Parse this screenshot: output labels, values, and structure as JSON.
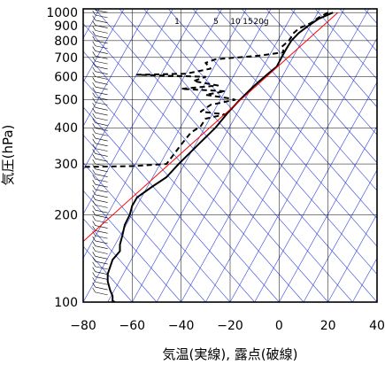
{
  "chart_data": {
    "type": "line",
    "title": "",
    "xlabel": "気温(実線), 露点(破線)",
    "ylabel": "気圧(hPa)",
    "x_scale": "linear",
    "y_scale": "log-inverted",
    "xlim": [
      -80,
      40
    ],
    "ylim": [
      1030,
      100
    ],
    "x_ticks": [
      -80,
      -60,
      -40,
      -20,
      0,
      20,
      40
    ],
    "y_ticks": [
      100,
      200,
      300,
      400,
      500,
      600,
      700,
      800,
      900,
      1000
    ],
    "mixing_ratio_labels": [
      "1",
      "5",
      "10",
      "15",
      "20g"
    ],
    "mixing_ratio_values": [
      1,
      5,
      10,
      15,
      20
    ],
    "grid": true,
    "series": [
      {
        "style": "solid",
        "color": "#000000",
        "points": [
          [
            22,
            1000
          ],
          [
            16,
            950
          ],
          [
            12,
            900
          ],
          [
            8,
            850
          ],
          [
            5,
            800
          ],
          [
            3,
            750
          ],
          [
            1,
            700
          ],
          [
            -1,
            650
          ],
          [
            -4,
            620
          ],
          [
            -8,
            580
          ],
          [
            -11,
            550
          ],
          [
            -16,
            500
          ],
          [
            -21,
            450
          ],
          [
            -26,
            400
          ],
          [
            -33,
            350
          ],
          [
            -41,
            300
          ],
          [
            -46,
            270
          ],
          [
            -52,
            250
          ],
          [
            -58,
            230
          ],
          [
            -60,
            215
          ],
          [
            -61,
            200
          ],
          [
            -63,
            185
          ],
          [
            -64,
            170
          ],
          [
            -65,
            158
          ],
          [
            -65,
            150
          ],
          [
            -68,
            140
          ],
          [
            -70,
            125
          ],
          [
            -70,
            118
          ],
          [
            -69,
            110
          ],
          [
            -68,
            105
          ],
          [
            -68,
            101
          ],
          [
            -67,
            100
          ]
        ]
      },
      {
        "style": "dashed",
        "color": "#000000",
        "points": [
          [
            20,
            1000
          ],
          [
            16,
            960
          ],
          [
            13,
            920
          ],
          [
            8,
            880
          ],
          [
            6,
            850
          ],
          [
            4,
            800
          ],
          [
            1,
            760
          ],
          [
            2,
            730
          ],
          [
            -8,
            710
          ],
          [
            -26,
            690
          ],
          [
            -30,
            670
          ],
          [
            -28,
            640
          ],
          [
            -38,
            615
          ],
          [
            -58,
            610
          ],
          [
            -30,
            600
          ],
          [
            -35,
            580
          ],
          [
            -25,
            560
          ],
          [
            -40,
            545
          ],
          [
            -22,
            535
          ],
          [
            -30,
            520
          ],
          [
            -20,
            505
          ],
          [
            -18,
            500
          ],
          [
            -28,
            480
          ],
          [
            -32,
            455
          ],
          [
            -22,
            445
          ],
          [
            -30,
            430
          ],
          [
            -32,
            405
          ],
          [
            -36,
            385
          ],
          [
            -40,
            350
          ],
          [
            -46,
            300
          ],
          [
            -60,
            295
          ],
          [
            -80,
            293
          ]
        ]
      },
      {
        "style": "solid",
        "color": "#ff0000",
        "points": [
          [
            24,
            1000
          ],
          [
            -80,
            162
          ]
        ]
      }
    ]
  }
}
